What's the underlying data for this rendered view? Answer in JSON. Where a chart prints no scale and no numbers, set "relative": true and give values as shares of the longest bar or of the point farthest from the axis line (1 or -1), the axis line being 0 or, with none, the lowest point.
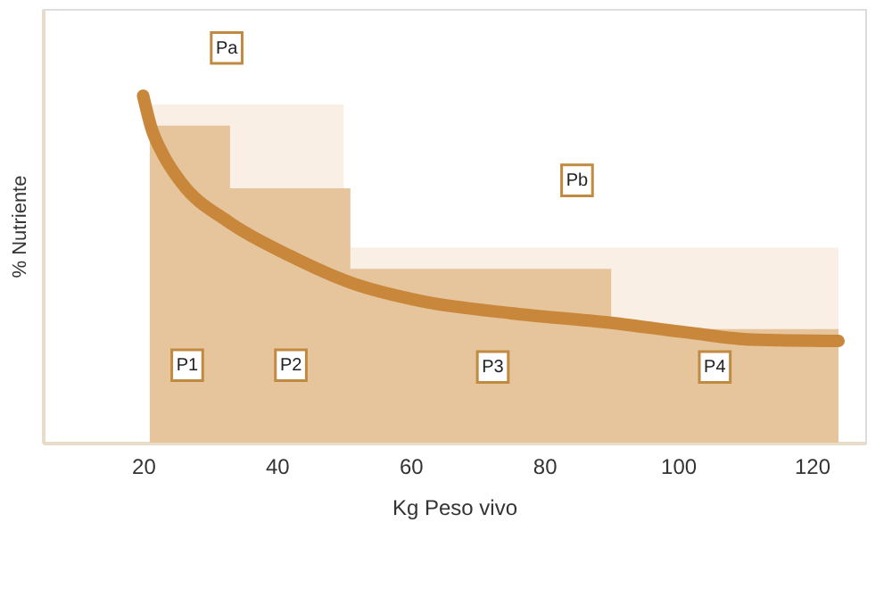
{
  "chart_data": {
    "type": "area",
    "relative": true,
    "xlabel": "Kg Peso vivo",
    "ylabel": "% Nutriente",
    "xlim": [
      5,
      128
    ],
    "xticks": [
      20,
      40,
      60,
      80,
      100,
      120
    ],
    "grid": false,
    "series": [
      {
        "color": "#f9efe4",
        "x": [
          21,
          50
        ],
        "values": [
          0.975,
          0.975
        ]
      },
      {
        "color": "#f9efe4",
        "x": [
          51,
          124
        ],
        "values": [
          0.562,
          0.562
        ]
      },
      {
        "color": "#e6c49c",
        "x": [
          21,
          33,
          33,
          51,
          51,
          90,
          90,
          124
        ],
        "values": [
          0.914,
          0.914,
          0.733,
          0.733,
          0.501,
          0.501,
          0.327,
          0.327
        ]
      },
      {
        "type": "line",
        "color": "#c8873a",
        "x": [
          20,
          21.2,
          23,
          25.7,
          32.8,
          41.8,
          51.2,
          61.6,
          75,
          89.7,
          102,
          111,
          124
        ],
        "values": [
          1.0,
          0.909,
          0.83,
          0.75,
          0.636,
          0.54,
          0.46,
          0.408,
          0.373,
          0.346,
          0.316,
          0.297,
          0.293
        ]
      }
    ],
    "annotations": [
      "Pa",
      {
        "text": "Pb",
        "x": 84.9,
        "y": 0.756
      },
      {
        "text": "P1",
        "x": 26.6,
        "y": 0.223
      },
      {
        "text": "P2",
        "x": 42.1,
        "y": 0.223
      },
      {
        "text": "P3",
        "x": 72.3,
        "y": 0.218
      },
      {
        "text": "P4",
        "x": 105.5,
        "y": 0.218
      }
    ]
  }
}
